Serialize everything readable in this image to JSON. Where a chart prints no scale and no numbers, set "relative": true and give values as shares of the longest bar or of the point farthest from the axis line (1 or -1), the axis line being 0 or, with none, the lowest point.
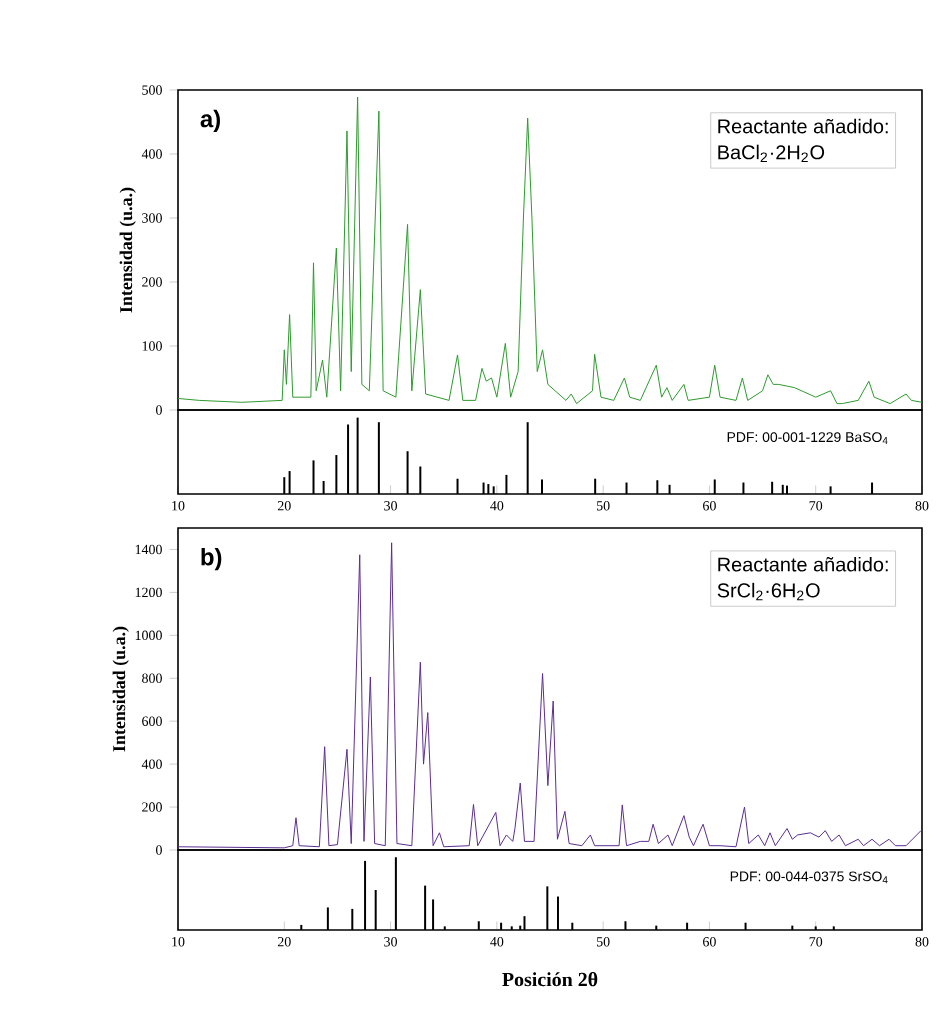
{
  "chart_data": [
    {
      "type": "line",
      "ylabel": "Intensidad (u.a.)",
      "color": "#2e9a2e",
      "xlim": [
        10,
        80
      ],
      "ylim": [
        0,
        500
      ],
      "yticks": [
        0,
        100,
        200,
        300,
        400,
        500
      ],
      "tick_labels": "y",
      "annotations": [
        "a)",
        "Reactante añadido:",
        "BaCl$_{2}$·2H$_{2}$O"
      ],
      "x": [
        10,
        12,
        16,
        19.8,
        20.0,
        20.2,
        20.5,
        20.8,
        22.5,
        22.75,
        23.0,
        23.6,
        24.0,
        24.9,
        25.3,
        25.9,
        26.3,
        26.9,
        27.3,
        28.0,
        28.9,
        29.3,
        30.5,
        31.6,
        32.0,
        32.8,
        33.3,
        35.5,
        36.3,
        36.8,
        38.0,
        38.6,
        39.0,
        39.5,
        40.0,
        40.8,
        41.3,
        42.0,
        42.5,
        42.9,
        43.3,
        43.8,
        44.3,
        44.8,
        46.5,
        47.0,
        47.5,
        49.0,
        49.2,
        49.8,
        51.0,
        52.0,
        52.5,
        53.5,
        55.0,
        55.5,
        56.0,
        56.5,
        57.6,
        58.0,
        60.0,
        60.5,
        61.0,
        62.5,
        63.1,
        63.6,
        65.0,
        65.5,
        66.0,
        66.5,
        68,
        70,
        71.4,
        72,
        72.5,
        74,
        75.0,
        75.5,
        77,
        78.5,
        79,
        80
      ],
      "values": [
        18,
        15,
        12,
        15,
        94,
        40,
        149,
        20,
        20,
        230,
        30,
        78,
        20,
        253,
        30,
        436,
        60,
        489,
        40,
        30,
        467,
        30,
        20,
        290,
        30,
        188,
        25,
        15,
        86,
        15,
        15,
        65,
        45,
        50,
        20,
        104,
        20,
        60,
        300,
        456,
        300,
        60,
        94,
        40,
        15,
        25,
        10,
        30,
        87,
        20,
        15,
        50,
        20,
        15,
        70,
        20,
        35,
        15,
        40,
        15,
        20,
        70,
        20,
        15,
        50,
        15,
        30,
        55,
        40,
        40,
        35,
        20,
        30,
        10,
        10,
        15,
        45,
        20,
        10,
        25,
        15,
        12
      ]
    },
    {
      "type": "bar",
      "relative": true,
      "color": "#000000",
      "xlim": [
        10,
        80
      ],
      "xticks": [
        10,
        20,
        30,
        40,
        50,
        60,
        70,
        80
      ],
      "tick_labels": "x",
      "annotations": [
        "PDF: 00-001-1229 BaSO$_{4}$"
      ],
      "x": [
        20.0,
        20.5,
        22.75,
        23.7,
        24.9,
        26.0,
        26.9,
        28.9,
        31.6,
        32.8,
        36.3,
        38.75,
        39.2,
        39.7,
        40.9,
        42.9,
        44.25,
        49.25,
        52.2,
        55.1,
        56.25,
        60.5,
        63.2,
        65.9,
        66.9,
        67.3,
        71.4,
        75.3
      ],
      "values": [
        0.22,
        0.3,
        0.44,
        0.17,
        0.51,
        0.91,
        1.0,
        0.94,
        0.56,
        0.36,
        0.2,
        0.15,
        0.13,
        0.1,
        0.25,
        0.94,
        0.19,
        0.2,
        0.15,
        0.18,
        0.12,
        0.19,
        0.15,
        0.16,
        0.12,
        0.11,
        0.1,
        0.15
      ]
    },
    {
      "type": "line",
      "ylabel": "Intensidad (u.a.)",
      "color": "#5a2d91",
      "xlim": [
        10,
        80
      ],
      "ylim": [
        0,
        1500
      ],
      "yticks": [
        0,
        200,
        400,
        600,
        800,
        1000,
        1200,
        1400
      ],
      "tick_labels": "y",
      "annotations": [
        "b)",
        "Reactante añadido:",
        "SrCl$_{2}$·6H$_{2}$O"
      ],
      "x": [
        10,
        20,
        20.8,
        21.1,
        21.4,
        23.3,
        23.8,
        24.2,
        25,
        25.9,
        26.3,
        27.1,
        27.5,
        28.1,
        28.5,
        29.5,
        30.1,
        30.6,
        32.0,
        32.8,
        33.1,
        33.5,
        34.0,
        34.6,
        35.0,
        37.4,
        37.8,
        38.2,
        39.9,
        40.3,
        40.9,
        41.5,
        41.7,
        42.2,
        42.6,
        43.5,
        44.3,
        44.8,
        45.3,
        45.7,
        46.4,
        46.8,
        48,
        48.8,
        49.2,
        51.5,
        51.8,
        52.2,
        53.5,
        54.3,
        54.7,
        55.2,
        56.1,
        56.5,
        57.6,
        58.1,
        58.5,
        59.4,
        60,
        61,
        62.5,
        63.3,
        63.7,
        64.6,
        65.2,
        65.7,
        66.2,
        67.3,
        67.8,
        68.3,
        69.5,
        70.3,
        70.9,
        71.5,
        72.2,
        72.8,
        74.0,
        74.5,
        75.3,
        76,
        76.9,
        77.5,
        78.5,
        79.9
      ],
      "values": [
        15,
        10,
        20,
        150,
        20,
        15,
        481,
        20,
        25,
        469,
        30,
        1375,
        40,
        806,
        30,
        20,
        1431,
        30,
        20,
        875,
        400,
        640,
        20,
        80,
        15,
        20,
        212,
        20,
        175,
        20,
        70,
        40,
        100,
        312,
        40,
        40,
        822,
        300,
        694,
        50,
        180,
        30,
        20,
        70,
        20,
        20,
        210,
        20,
        40,
        40,
        120,
        30,
        70,
        20,
        160,
        60,
        20,
        120,
        20,
        20,
        15,
        200,
        30,
        70,
        20,
        80,
        20,
        100,
        50,
        70,
        80,
        60,
        90,
        40,
        70,
        20,
        50,
        20,
        50,
        20,
        50,
        20,
        20,
        90
      ]
    },
    {
      "type": "bar",
      "relative": true,
      "color": "#000000",
      "xlim": [
        10,
        80
      ],
      "xticks": [
        10,
        20,
        30,
        40,
        50,
        60,
        70,
        80
      ],
      "tick_labels": "x",
      "xlabel": "Posición 2θ",
      "annotations": [
        "PDF: 00-044-0375 SrSO$_{4}$"
      ],
      "x": [
        21.6,
        24.1,
        26.4,
        27.6,
        28.6,
        30.5,
        33.25,
        34.0,
        35.1,
        38.3,
        40.4,
        41.4,
        42.2,
        42.6,
        44.75,
        45.75,
        47.1,
        52.1,
        55.0,
        57.9,
        63.4,
        67.8,
        70.0,
        71.7
      ],
      "values": [
        0.07,
        0.31,
        0.29,
        0.95,
        0.55,
        1.0,
        0.61,
        0.42,
        0.05,
        0.12,
        0.1,
        0.05,
        0.06,
        0.19,
        0.6,
        0.46,
        0.1,
        0.12,
        0.06,
        0.1,
        0.1,
        0.06,
        0.05,
        0.05
      ]
    }
  ]
}
